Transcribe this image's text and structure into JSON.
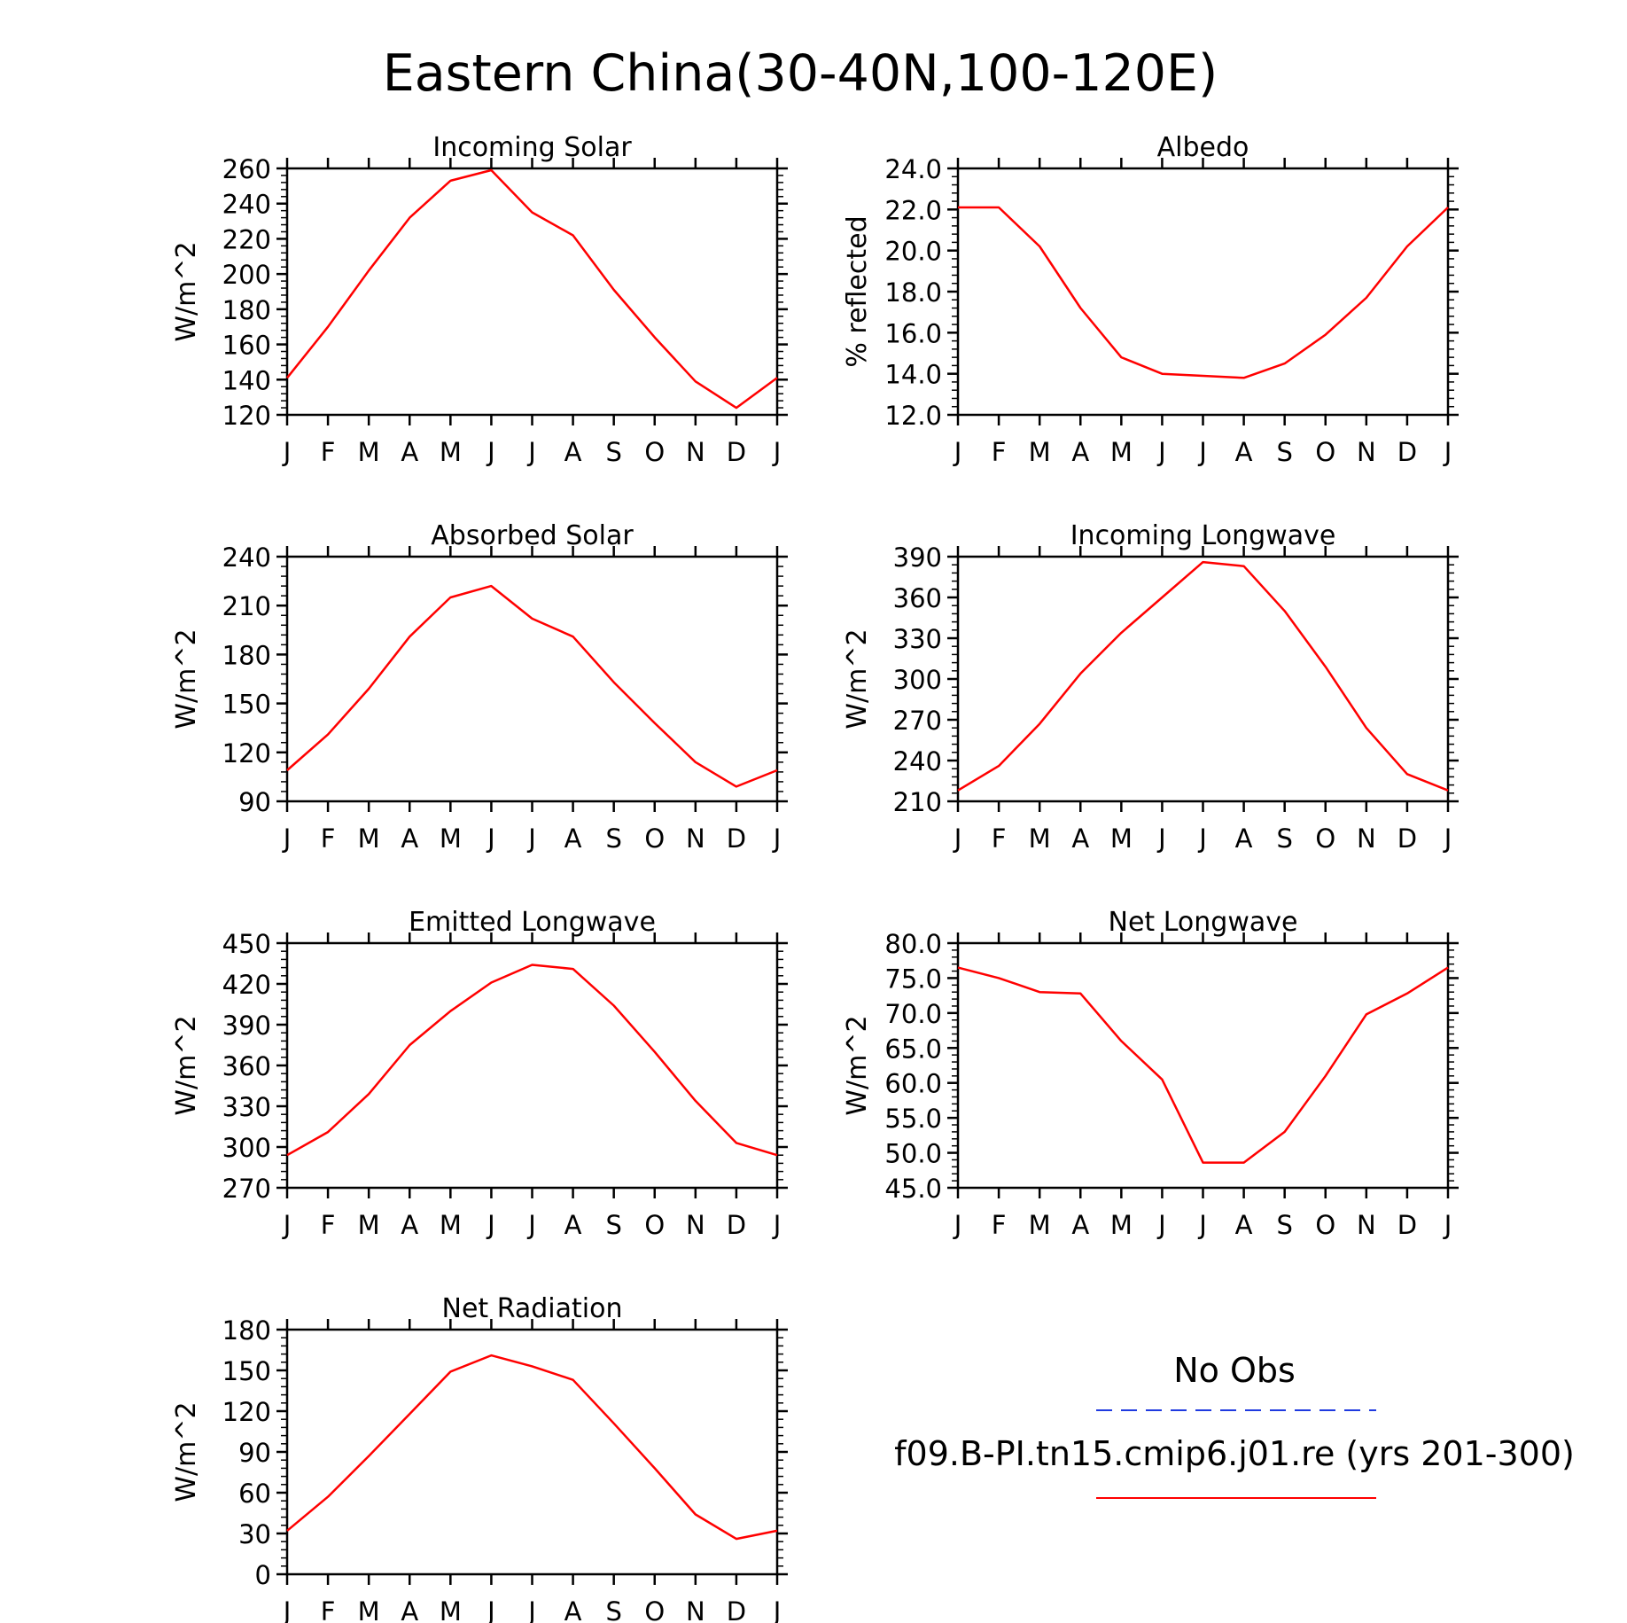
{
  "title": "Eastern China(30-40N,100-120E)",
  "legend": {
    "entries": [
      {
        "label": "No Obs",
        "color": "#1f3ae0",
        "style": "dashed"
      },
      {
        "label": "f09.B-PI.tn15.cmip6.j01.re (yrs 201-300)",
        "color": "#ff0000",
        "style": "solid"
      }
    ]
  },
  "chart_data": [
    {
      "type": "line",
      "title": "Incoming Solar",
      "ylabel": "W/m^2",
      "categories": [
        "J",
        "F",
        "M",
        "A",
        "M",
        "J",
        "J",
        "A",
        "S",
        "O",
        "N",
        "D",
        "J"
      ],
      "ylim": [
        120,
        260
      ],
      "yticks": [
        "120",
        "140",
        "160",
        "180",
        "200",
        "220",
        "240",
        "260"
      ],
      "series": [
        {
          "color": "#ff0000",
          "values": [
            141,
            170,
            202,
            232,
            253,
            259,
            235,
            222,
            191,
            164,
            139,
            124,
            141
          ]
        }
      ]
    },
    {
      "type": "line",
      "title": "Albedo",
      "ylabel": "% reflected",
      "categories": [
        "J",
        "F",
        "M",
        "A",
        "M",
        "J",
        "J",
        "A",
        "S",
        "O",
        "N",
        "D",
        "J"
      ],
      "ylim": [
        12,
        24
      ],
      "yticks": [
        "12.0",
        "14.0",
        "16.0",
        "18.0",
        "20.0",
        "22.0",
        "24.0"
      ],
      "series": [
        {
          "color": "#ff0000",
          "values": [
            22.1,
            22.1,
            20.2,
            17.2,
            14.8,
            14.0,
            13.9,
            13.8,
            14.5,
            15.9,
            17.7,
            20.2,
            22.1
          ]
        }
      ]
    },
    {
      "type": "line",
      "title": "Absorbed Solar",
      "ylabel": "W/m^2",
      "categories": [
        "J",
        "F",
        "M",
        "A",
        "M",
        "J",
        "J",
        "A",
        "S",
        "O",
        "N",
        "D",
        "J"
      ],
      "ylim": [
        90,
        240
      ],
      "yticks": [
        "90",
        "120",
        "150",
        "180",
        "210",
        "240"
      ],
      "series": [
        {
          "color": "#ff0000",
          "values": [
            109,
            131,
            159,
            191,
            215,
            222,
            202,
            191,
            163,
            138,
            114,
            99,
            109
          ]
        }
      ]
    },
    {
      "type": "line",
      "title": "Incoming Longwave",
      "ylabel": "W/m^2",
      "categories": [
        "J",
        "F",
        "M",
        "A",
        "M",
        "J",
        "J",
        "A",
        "S",
        "O",
        "N",
        "D",
        "J"
      ],
      "ylim": [
        210,
        390
      ],
      "yticks": [
        "210",
        "240",
        "270",
        "300",
        "330",
        "360",
        "390"
      ],
      "series": [
        {
          "color": "#ff0000",
          "values": [
            218,
            236,
            267,
            304,
            334,
            360,
            386,
            383,
            350,
            309,
            264,
            230,
            218
          ]
        }
      ]
    },
    {
      "type": "line",
      "title": "Emitted Longwave",
      "ylabel": "W/m^2",
      "categories": [
        "J",
        "F",
        "M",
        "A",
        "M",
        "J",
        "J",
        "A",
        "S",
        "O",
        "N",
        "D",
        "J"
      ],
      "ylim": [
        270,
        450
      ],
      "yticks": [
        "270",
        "300",
        "330",
        "360",
        "390",
        "420",
        "450"
      ],
      "series": [
        {
          "color": "#ff0000",
          "values": [
            294,
            311,
            339,
            375,
            400,
            421,
            434,
            431,
            404,
            370,
            334,
            303,
            294
          ]
        }
      ]
    },
    {
      "type": "line",
      "title": "Net Longwave",
      "ylabel": "W/m^2",
      "categories": [
        "J",
        "F",
        "M",
        "A",
        "M",
        "J",
        "J",
        "A",
        "S",
        "O",
        "N",
        "D",
        "J"
      ],
      "ylim": [
        45,
        80
      ],
      "yticks": [
        "45.0",
        "50.0",
        "55.0",
        "60.0",
        "65.0",
        "70.0",
        "75.0",
        "80.0"
      ],
      "series": [
        {
          "color": "#ff0000",
          "values": [
            76.5,
            75.0,
            73.0,
            72.8,
            66.0,
            60.5,
            48.6,
            48.6,
            53.0,
            61.0,
            69.8,
            72.8,
            76.5
          ]
        }
      ]
    },
    {
      "type": "line",
      "title": "Net Radiation",
      "ylabel": "W/m^2",
      "categories": [
        "J",
        "F",
        "M",
        "A",
        "M",
        "J",
        "J",
        "A",
        "S",
        "O",
        "N",
        "D",
        "J"
      ],
      "ylim": [
        0,
        180
      ],
      "yticks": [
        "0",
        "30",
        "60",
        "90",
        "120",
        "150",
        "180"
      ],
      "series": [
        {
          "color": "#ff0000",
          "values": [
            32,
            57,
            87,
            118,
            149,
            161,
            153,
            143,
            111,
            78,
            44,
            26,
            32
          ]
        }
      ]
    }
  ]
}
